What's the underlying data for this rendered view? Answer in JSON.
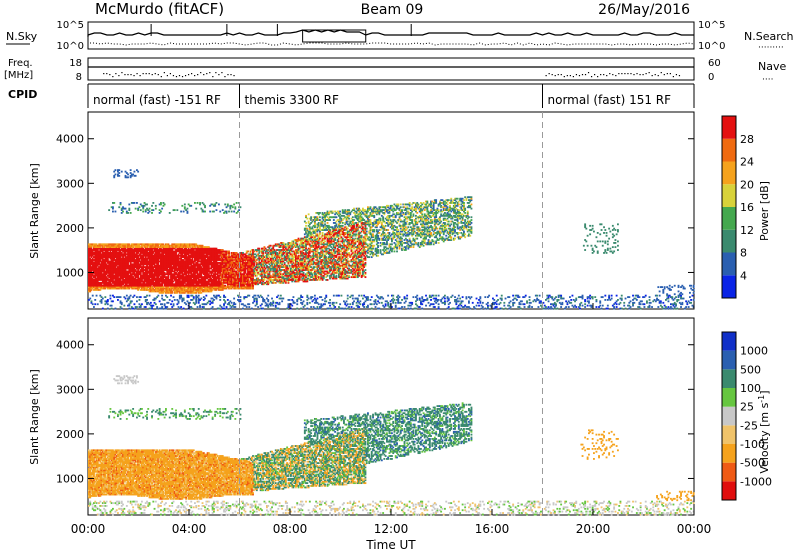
{
  "header": {
    "station": "McMurdo (fitACF)",
    "beam": "Beam 09",
    "date": "26/May/2016"
  },
  "summary_panels": {
    "nsky_label": "N.Sky",
    "nsearch_label": "N.Search",
    "nsearch_dots": "·········",
    "freq_label_line1": "Freq.",
    "freq_label_line2": "[MHz]",
    "nave_label": "Nave",
    "nave_dots": "····",
    "cpid_label": "CPID",
    "nsky_ticks": [
      "10^5",
      "10^0"
    ],
    "nsearch_ticks": [
      "10^5",
      "10^0"
    ],
    "freq_ticks": [
      "18",
      "8"
    ],
    "nave_ticks": [
      "60",
      "0"
    ]
  },
  "cpid_segments": [
    {
      "start_hour": 0,
      "end_hour": 6,
      "label": "normal (fast) -151 RF"
    },
    {
      "start_hour": 6,
      "end_hour": 18,
      "label": "themis 3300 RF"
    },
    {
      "start_hour": 18,
      "end_hour": 24,
      "label": "normal (fast) 151 RF"
    }
  ],
  "axes": {
    "x_ticks": [
      "00:00",
      "04:00",
      "08:00",
      "12:00",
      "16:00",
      "20:00",
      "00:00"
    ],
    "x_label": "Time UT",
    "y_ticks": [
      "1000",
      "2000",
      "3000",
      "4000"
    ],
    "y_label": "Slant Range [km]"
  },
  "colors": {
    "power": [
      "#0a24e6",
      "#2a5fb0",
      "#3a8a6e",
      "#44a84e",
      "#d8d23a",
      "#f5a21c",
      "#ef6a10",
      "#e41010"
    ],
    "velocity": [
      "#e00d0d",
      "#ef5a15",
      "#f5a21c",
      "#f0c36a",
      "#c8c8c8",
      "#66c640",
      "#3a8a6e",
      "#2a5fb0",
      "#1030c8"
    ]
  },
  "chart_data": [
    {
      "type": "heatmap",
      "name": "power",
      "colorbar_label": "Power [dB]",
      "colorbar_ticks": [
        "4",
        "8",
        "12",
        "16",
        "20",
        "24",
        "28"
      ],
      "x_range_hours": [
        0,
        24
      ],
      "y_range_km": [
        180,
        4600
      ],
      "echo_regions": [
        {
          "t_start": 0.0,
          "t_end": 6.5,
          "range_low_km": 550,
          "range_high_km": 1700,
          "level": "28+"
        },
        {
          "t_start": 6.5,
          "t_end": 11.0,
          "range_low_km": 700,
          "range_high_km": 2200,
          "level": "16-28"
        },
        {
          "t_start": 8.5,
          "t_end": 15.2,
          "range_low_km": 1000,
          "range_high_km": 2700,
          "level": "8-20"
        },
        {
          "t_start": 0.0,
          "t_end": 24.0,
          "range_low_km": 200,
          "range_high_km": 500,
          "level": "4-16"
        },
        {
          "t_start": 1.0,
          "t_end": 2.0,
          "range_low_km": 3100,
          "range_high_km": 3300,
          "level": "8-12"
        },
        {
          "t_start": 19.5,
          "t_end": 21.0,
          "range_low_km": 1400,
          "range_high_km": 2100,
          "level": "8-12"
        }
      ]
    },
    {
      "type": "heatmap",
      "name": "velocity",
      "colorbar_label": "Velocity [m s-1]",
      "colorbar_ticks": [
        "-1000",
        "-500",
        "-100",
        "-25",
        "25",
        "100",
        "500",
        "1000"
      ],
      "x_range_hours": [
        0,
        24
      ],
      "y_range_km": [
        180,
        4600
      ],
      "echo_regions": [
        {
          "t_start": 0.0,
          "t_end": 6.5,
          "range_low_km": 550,
          "range_high_km": 1700,
          "level": "-100 to -500"
        },
        {
          "t_start": 6.5,
          "t_end": 11.0,
          "range_low_km": 700,
          "range_high_km": 2200,
          "level": "-100 to 100"
        },
        {
          "t_start": 8.5,
          "t_end": 15.2,
          "range_low_km": 1000,
          "range_high_km": 2700,
          "level": "100 to 500"
        },
        {
          "t_start": 0.0,
          "t_end": 24.0,
          "range_low_km": 200,
          "range_high_km": 500,
          "level": "-25 to 25"
        },
        {
          "t_start": 19.5,
          "t_end": 21.0,
          "range_low_km": 1400,
          "range_high_km": 2100,
          "level": "-100 to -500"
        }
      ]
    }
  ]
}
